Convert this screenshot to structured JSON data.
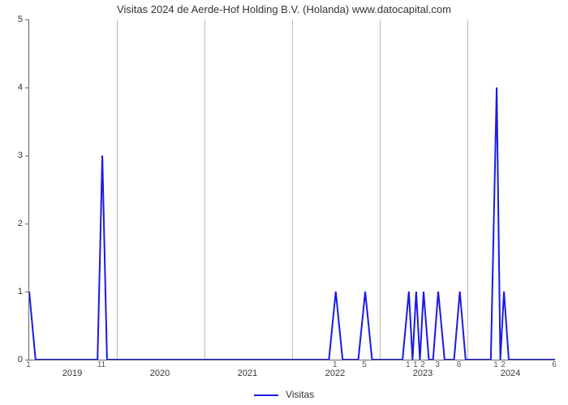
{
  "chart": {
    "type": "line",
    "title": "Visitas 2024 de Aerde-Hof Holding B.V. (Holanda) www.datocapital.com",
    "title_fontsize": 13,
    "background_color": "#ffffff",
    "line_color": "#1a1ae6",
    "line_width": 2,
    "grid_color": "#bbbbbb",
    "axis_color": "#666666",
    "ylim": [
      0,
      5
    ],
    "yticks": [
      0,
      1,
      2,
      3,
      4,
      5
    ],
    "year_labels": [
      "2019",
      "2020",
      "2021",
      "2022",
      "2023",
      "2024"
    ],
    "x_small_labels": [
      {
        "t": 0.0,
        "label": "1"
      },
      {
        "t": 0.139,
        "label": "11"
      },
      {
        "t": 0.583,
        "label": "1"
      },
      {
        "t": 0.639,
        "label": "5"
      },
      {
        "t": 0.722,
        "label": "1"
      },
      {
        "t": 0.736,
        "label": "1"
      },
      {
        "t": 0.75,
        "label": "2"
      },
      {
        "t": 0.778,
        "label": "3"
      },
      {
        "t": 0.819,
        "label": "6"
      },
      {
        "t": 0.889,
        "label": "1"
      },
      {
        "t": 0.903,
        "label": "2"
      },
      {
        "t": 1.0,
        "label": "6"
      }
    ],
    "series": [
      {
        "t": 0.0,
        "v": 1
      },
      {
        "t": 0.012,
        "v": 0
      },
      {
        "t": 0.13,
        "v": 0
      },
      {
        "t": 0.139,
        "v": 3
      },
      {
        "t": 0.148,
        "v": 0
      },
      {
        "t": 0.57,
        "v": 0
      },
      {
        "t": 0.583,
        "v": 1
      },
      {
        "t": 0.596,
        "v": 0
      },
      {
        "t": 0.626,
        "v": 0
      },
      {
        "t": 0.639,
        "v": 1
      },
      {
        "t": 0.652,
        "v": 0
      },
      {
        "t": 0.71,
        "v": 0
      },
      {
        "t": 0.722,
        "v": 1
      },
      {
        "t": 0.729,
        "v": 0
      },
      {
        "t": 0.736,
        "v": 1
      },
      {
        "t": 0.743,
        "v": 0
      },
      {
        "t": 0.75,
        "v": 1
      },
      {
        "t": 0.76,
        "v": 0
      },
      {
        "t": 0.768,
        "v": 0
      },
      {
        "t": 0.778,
        "v": 1
      },
      {
        "t": 0.79,
        "v": 0
      },
      {
        "t": 0.808,
        "v": 0
      },
      {
        "t": 0.819,
        "v": 1
      },
      {
        "t": 0.83,
        "v": 0
      },
      {
        "t": 0.878,
        "v": 0
      },
      {
        "t": 0.889,
        "v": 4
      },
      {
        "t": 0.896,
        "v": 0
      },
      {
        "t": 0.903,
        "v": 1
      },
      {
        "t": 0.912,
        "v": 0
      },
      {
        "t": 1.0,
        "v": 0
      }
    ],
    "legend_label": "Visitas"
  }
}
